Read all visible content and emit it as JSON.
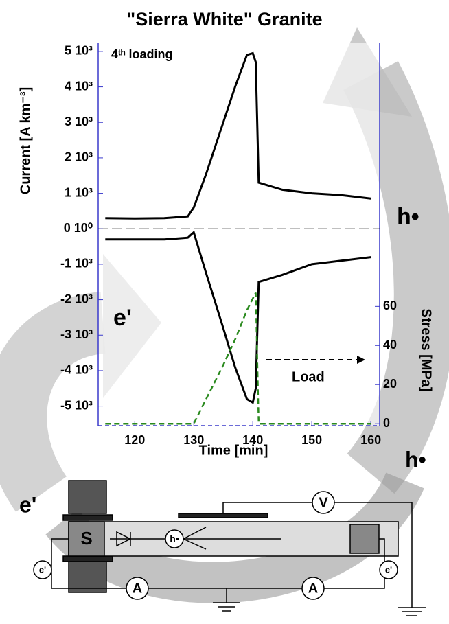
{
  "chart_data": {
    "type": "line",
    "title": "\"Sierra White\" Granite",
    "xlabel": "Time [min]",
    "ylabel": "Current [A km⁻³]",
    "y2label": "Stress [MPa]",
    "annotations": [
      "4ᵗʰ loading",
      "Load",
      "e'",
      "h•",
      "h•",
      "e'"
    ],
    "x": [
      115,
      120,
      125,
      129,
      130,
      132,
      135,
      137,
      139,
      140,
      140.5,
      141,
      142,
      145,
      150,
      155,
      160
    ],
    "series": [
      {
        "color": "#000000",
        "values": [
          300,
          290,
          300,
          350,
          600,
          1500,
          3000,
          4000,
          4900,
          4950,
          4700,
          1300,
          1250,
          1100,
          1000,
          950,
          850
        ]
      },
      {
        "color": "#000000",
        "values": [
          -300,
          -300,
          -300,
          -250,
          -100,
          -1200,
          -2800,
          -3900,
          -4800,
          -4900,
          -4500,
          -1500,
          -1450,
          -1300,
          -1000,
          -900,
          -800
        ]
      },
      {
        "color": "#2a8a1e",
        "axis": "y2",
        "dashed": true,
        "values": [
          0,
          0,
          0,
          0,
          0,
          12,
          30,
          43,
          58,
          64,
          67,
          0,
          0,
          0,
          0,
          0,
          0
        ]
      }
    ],
    "xlim": [
      113.8,
      161.5
    ],
    "xticks": [
      120,
      130,
      140,
      150,
      160
    ],
    "ylim": [
      -5550,
      5250
    ],
    "yticks": [
      {
        "value": 5000,
        "label": "5 10³"
      },
      {
        "value": 4000,
        "label": "4 10³"
      },
      {
        "value": 3000,
        "label": "3 10³"
      },
      {
        "value": 2000,
        "label": "2 10³"
      },
      {
        "value": 1000,
        "label": "1 10³"
      },
      {
        "value": 0,
        "label": "0 10⁰"
      },
      {
        "value": -1000,
        "label": "-1 10³"
      },
      {
        "value": -2000,
        "label": "-2 10³"
      },
      {
        "value": -3000,
        "label": "-3 10³"
      },
      {
        "value": -4000,
        "label": "-4 10³"
      },
      {
        "value": -5000,
        "label": "-5 10³"
      }
    ],
    "y2lim": [
      -1,
      195
    ],
    "y2ticks": [
      0,
      20,
      40,
      60
    ],
    "axis_color": "#3a3acc"
  },
  "schematic": {
    "sample": "S",
    "voltmeter": "V",
    "ammeter_left": "A",
    "ammeter_right": "A",
    "hole": "h•",
    "electron_left": "e'",
    "electron_right": "e'"
  }
}
